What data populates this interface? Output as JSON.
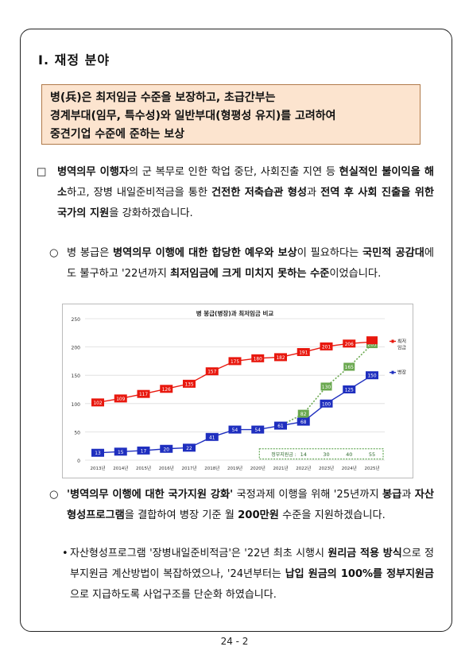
{
  "section_title": "Ⅰ. 재정 분야",
  "highlight_lines": [
    "병(兵)은 최저임금 수준을 보장하고, 초급간부는",
    "경계부대(임무, 특수성)와 일반부대(형평성 유지)를 고려하여",
    "중견기업 수준에 준하는 보상"
  ],
  "para1": {
    "mark": "□",
    "t1": "병역의무 이행자",
    "t2": "의 군 복무로 인한 학업 중단, 사회진출 지연 등 ",
    "t3": "현실적인 불이익을 해소",
    "t4": "하고, 장병 내일준비적금을 통한 ",
    "t5": "건전한 저축습관 형성",
    "t6": "과 ",
    "t7": "전역 후 사회 진출을 위한 국가의 지원",
    "t8": "을 강화하겠습니다."
  },
  "para2": {
    "mark": "○",
    "t1": "병 봉급은 ",
    "t2": "병역의무 이행에 대한 합당한 예우와 보상",
    "t3": "이 필요하다는 ",
    "t4": "국민적 공감대",
    "t5": "에도 불구하고 '22년까지 ",
    "t6": "최저임금에 크게 미치지 못하는 수준",
    "t7": "이었습니다."
  },
  "para3": {
    "mark": "○",
    "t1": "'병역의무 이행에 대한 국가지원 강화'",
    "t2": " 국정과제 이행을 위해 '25년까지 ",
    "t3": "봉급",
    "t4": "과 ",
    "t5": "자산형성프로그램",
    "t6": "을 결합하여 병장 기준 월 ",
    "t7": "200만원",
    "t8": " 수준을 지원하겠습니다."
  },
  "para4": {
    "mark": "•",
    "t1": "자산형성프로그램 '장병내일준비적금'은 '22년 최초 시행시 ",
    "t2": "원리금 적용 방식",
    "t3": "으로 정부지원금 계산방법이 복잡하였으나, '24년부터는 ",
    "t4": "납입 원금의 100%를 정부지원금",
    "t5": "으로 지급하도록 사업구조를 단순화 하였습니다."
  },
  "page_number": "24 - 2",
  "chart_data": {
    "type": "line",
    "title": "병 봉급(병장)과 최저임금 비교",
    "categories": [
      "2013년",
      "2014년",
      "2015년",
      "2016년",
      "2017년",
      "2018년",
      "2019년",
      "2020년",
      "2021년",
      "2022년",
      "2023년",
      "2024년",
      "2025년"
    ],
    "ylim": [
      0,
      250
    ],
    "yticks": [
      0,
      50,
      100,
      150,
      200,
      250
    ],
    "series": [
      {
        "name": "최저임금",
        "color": "#e8180e",
        "values": [
          102,
          109,
          117,
          126,
          135,
          157,
          175,
          180,
          182,
          191,
          201,
          206,
          209
        ]
      },
      {
        "name": "병장",
        "color": "#1f2fbf",
        "values": [
          13,
          15,
          17,
          20,
          22,
          41,
          54,
          54,
          61,
          68,
          100,
          125,
          150
        ]
      }
    ],
    "combined": {
      "color": "#6aa84f",
      "values": [
        {
          "x": "2021년",
          "y": 61
        },
        {
          "x": "2022년",
          "y": 82
        },
        {
          "x": "2023년",
          "y": 130
        },
        {
          "x": "2024년",
          "y": 165
        },
        {
          "x": "2025년",
          "y": 205
        }
      ]
    },
    "last_label_override": "",
    "gov_support": {
      "label": "정부지원금 :",
      "values": [
        "14",
        "30",
        "40",
        "55"
      ]
    },
    "legend_labels": {
      "min_wage": [
        "최저",
        "임금"
      ],
      "sergeant": "병장"
    }
  }
}
